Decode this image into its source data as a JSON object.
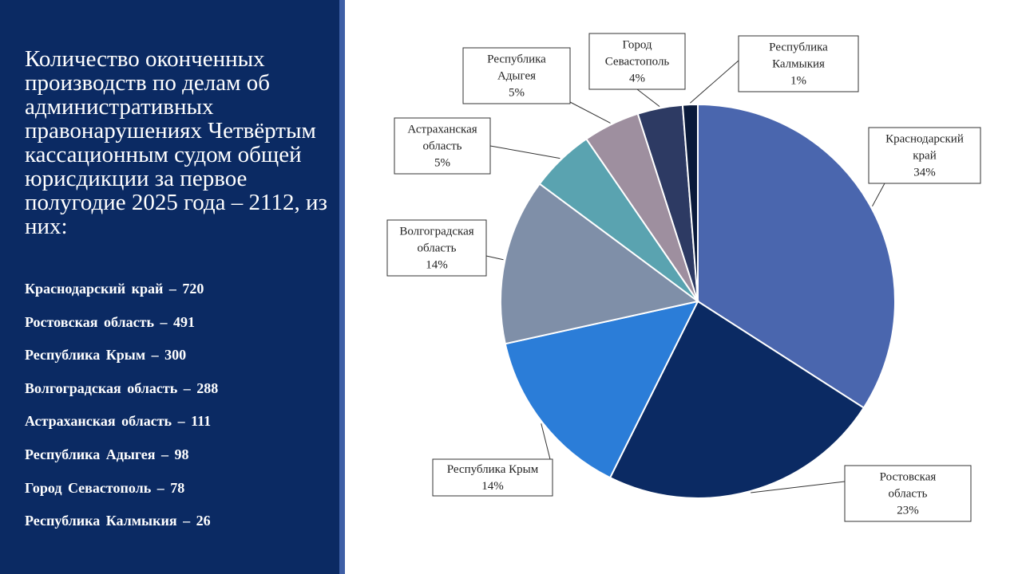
{
  "slide": {
    "title": "Количество оконченных производств по делам об административных правонарушениях Четвёртым кассационным судом общей юрисдикции за первое полугодие 2025 года – 2112, из них:",
    "list": [
      "Краснодарский  край  – 720",
      "Ростовская  область  – 491",
      "Республика  Крым  – 300",
      "Волгоградская  область  – 288",
      "Астраханская  область  – 111",
      "Республика  Адыгея  – 98",
      "Город  Севастополь  – 78",
      "Республика  Калмыкия  – 26"
    ]
  },
  "colors": {
    "panel": "#0b2a63",
    "stripe": "#3e5fa6"
  },
  "chart_data": {
    "type": "pie",
    "title": "",
    "slices": [
      {
        "name": "Краснодарский край",
        "value": 720,
        "percent": "34%",
        "label_lines": [
          "Краснодарский",
          "край"
        ],
        "color": "#4a66ae"
      },
      {
        "name": "Ростовская область",
        "value": 491,
        "percent": "23%",
        "label_lines": [
          "Ростовская",
          "область"
        ],
        "color": "#0b2a63"
      },
      {
        "name": "Республика Крым",
        "value": 300,
        "percent": "14%",
        "label_lines": [
          "Республика Крым"
        ],
        "color": "#2b7dd8"
      },
      {
        "name": "Волгоградская область",
        "value": 288,
        "percent": "14%",
        "label_lines": [
          "Волгоградская",
          "область"
        ],
        "color": "#7f8fa8"
      },
      {
        "name": "Астраханская область",
        "value": 111,
        "percent": "5%",
        "label_lines": [
          "Астраханская",
          "область"
        ],
        "color": "#5aa3b0"
      },
      {
        "name": "Республика Адыгея",
        "value": 98,
        "percent": "5%",
        "label_lines": [
          "Республика",
          "Адыгея"
        ],
        "color": "#9e8f9f"
      },
      {
        "name": "Город Севастополь",
        "value": 78,
        "percent": "4%",
        "label_lines": [
          "Город",
          "Севастополь"
        ],
        "color": "#2d3a63"
      },
      {
        "name": "Республика Калмыкия",
        "value": 26,
        "percent": "1%",
        "label_lines": [
          "Республика",
          "Калмыкия"
        ],
        "color": "#0a1a3a"
      }
    ]
  }
}
